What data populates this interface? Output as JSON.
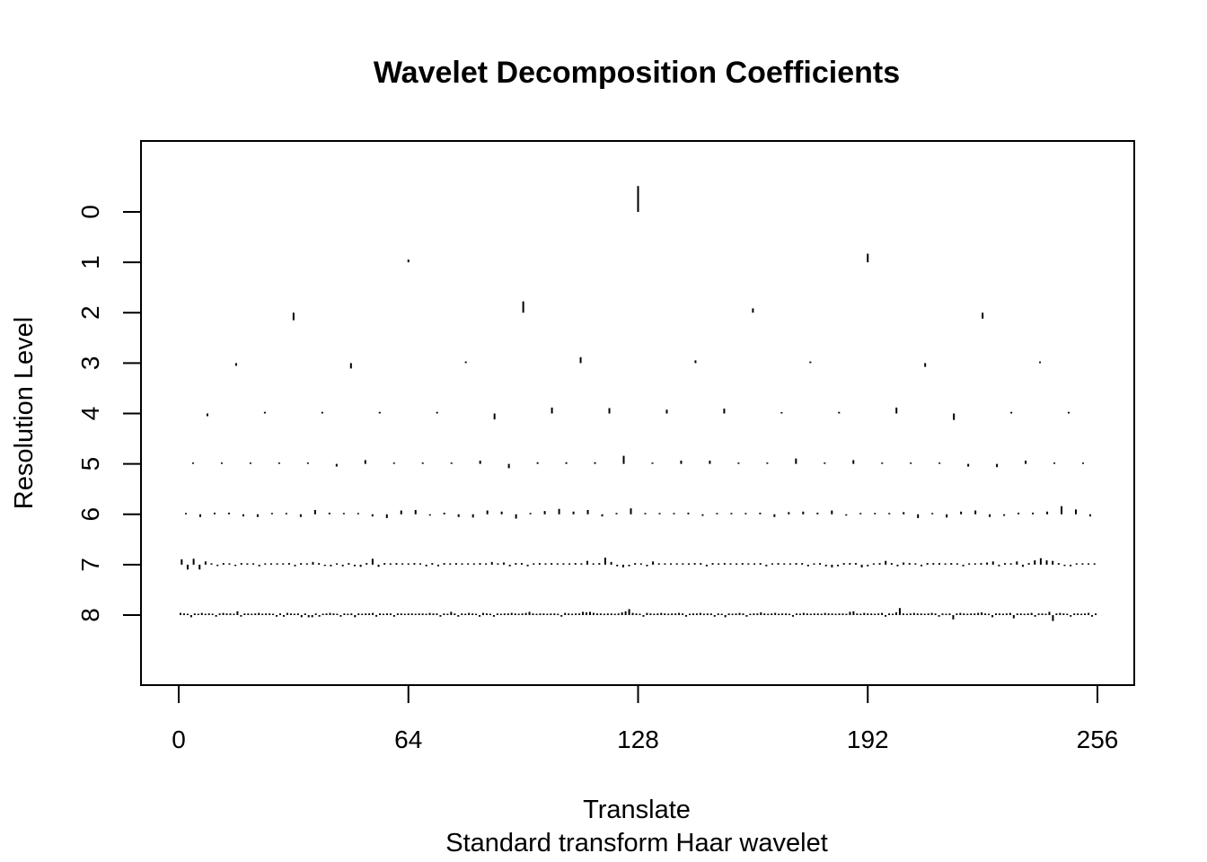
{
  "chart_data": {
    "type": "scatter",
    "title": "Wavelet Decomposition Coefficients",
    "xlabel": "Translate",
    "subtitle": "Standard transform Haar wavelet",
    "ylabel": "Resolution Level",
    "xlim": [
      0,
      256
    ],
    "x_ticks": [
      "0",
      "64",
      "128",
      "192",
      "256"
    ],
    "x_tick_values": [
      0,
      64,
      128,
      192,
      256
    ],
    "ylim": [
      -1.4,
      9.4
    ],
    "y_ticks": [
      "0",
      "1",
      "2",
      "3",
      "4",
      "5",
      "6",
      "7",
      "8"
    ],
    "y_tick_values": [
      0,
      1,
      2,
      3,
      4,
      5,
      6,
      7,
      8
    ],
    "grid": false,
    "legend": "none",
    "levels": [
      {
        "level": 0,
        "coefficients": [
          0.96
        ]
      },
      {
        "level": 1,
        "coefficients": [
          0.1,
          0.32
        ]
      },
      {
        "level": 2,
        "coefficients": [
          -0.28,
          0.42,
          0.16,
          -0.22
        ]
      },
      {
        "level": 3,
        "coefficients": [
          -0.1,
          -0.2,
          0.06,
          0.22,
          0.1,
          0.06,
          -0.14,
          0.06
        ]
      },
      {
        "level": 4,
        "coefficients": [
          -0.1,
          0.06,
          0.06,
          0.06,
          0.06,
          -0.22,
          0.22,
          0.2,
          0.14,
          0.18,
          0.04,
          0.06,
          0.22,
          -0.24,
          0.06,
          0.06
        ]
      },
      {
        "level": 5,
        "coefficients": [
          0.04,
          0.04,
          0.04,
          0.04,
          0.04,
          -0.1,
          0.14,
          0.04,
          0.04,
          0.04,
          0.12,
          -0.16,
          0.06,
          0.06,
          0.06,
          0.3,
          0.04,
          0.12,
          0.12,
          0.04,
          0.04,
          0.2,
          0.04,
          0.14,
          0.04,
          0.04,
          0.04,
          -0.1,
          -0.12,
          0.12,
          0.04,
          0.04
        ]
      },
      {
        "level": 6,
        "coefficients": [
          0.04,
          -0.1,
          0.06,
          0.06,
          -0.08,
          -0.1,
          0.04,
          0.04,
          -0.1,
          0.16,
          0.06,
          0.04,
          0.04,
          -0.08,
          -0.14,
          0.14,
          0.16,
          -0.04,
          0.06,
          -0.1,
          -0.12,
          0.14,
          0.1,
          -0.16,
          0.04,
          0.12,
          0.2,
          0.1,
          0.16,
          -0.08,
          0.04,
          0.22,
          0.04,
          0.04,
          0.04,
          0.06,
          -0.06,
          0.04,
          0.04,
          0.04,
          0.06,
          -0.1,
          0.08,
          0.1,
          0.06,
          0.14,
          -0.04,
          0.04,
          0.04,
          0.04,
          0.08,
          -0.14,
          0.04,
          -0.12,
          0.1,
          0.14,
          -0.1,
          -0.06,
          0.06,
          0.06,
          0.1,
          0.3,
          0.18,
          -0.08
        ]
      },
      {
        "level": 7,
        "coefficients": [
          0.2,
          -0.18,
          0.22,
          -0.18,
          0.12,
          0.04,
          -0.04,
          0.06,
          0.04,
          -0.04,
          0.06,
          0.04,
          0.04,
          -0.06,
          0.04,
          0.04,
          0.04,
          0.04,
          0.06,
          -0.06,
          0.06,
          0.04,
          0.1,
          0.06,
          -0.04,
          -0.06,
          0.04,
          -0.06,
          0.06,
          -0.06,
          -0.08,
          0.06,
          0.22,
          -0.08,
          0.06,
          0.04,
          0.06,
          0.04,
          0.04,
          0.06,
          0.04,
          -0.06,
          0.06,
          -0.06,
          0.06,
          0.04,
          0.06,
          0.04,
          0.04,
          0.04,
          0.06,
          0.04,
          0.1,
          0.04,
          0.08,
          -0.06,
          0.06,
          0.06,
          -0.06,
          0.04,
          0.06,
          0.04,
          0.06,
          0.04,
          0.04,
          0.04,
          0.06,
          0.04,
          0.14,
          0.04,
          0.06,
          0.26,
          0.1,
          -0.06,
          -0.1,
          -0.06,
          0.06,
          0.04,
          -0.06,
          0.12,
          0.04,
          0.04,
          0.04,
          0.04,
          0.04,
          0.04,
          0.06,
          0.06,
          -0.06,
          0.06,
          0.04,
          0.06,
          0.04,
          0.04,
          0.06,
          0.04,
          0.04,
          0.06,
          -0.06,
          0.04,
          0.06,
          0.04,
          0.04,
          0.06,
          0.06,
          -0.06,
          0.04,
          0.06,
          -0.06,
          -0.1,
          -0.06,
          0.06,
          0.06,
          0.06,
          -0.1,
          -0.06,
          0.04,
          0.06,
          0.14,
          0.06,
          -0.06,
          0.08,
          0.06,
          0.04,
          -0.06,
          0.06,
          0.06,
          0.06,
          0.04,
          0.06,
          0.04,
          -0.06,
          0.04,
          0.04,
          0.06,
          0.08,
          0.12,
          -0.06,
          0.06,
          0.04,
          0.12,
          -0.08,
          0.06,
          0.16,
          0.24,
          0.16,
          0.14,
          0.06,
          -0.04,
          -0.06,
          0.04,
          0.04,
          0.04,
          0.04
        ]
      },
      {
        "level": 8,
        "coefficients": [
          0.08,
          0.06,
          0.04,
          -0.08,
          0.06,
          0.04,
          0.08,
          0.04,
          0.06,
          0.04,
          -0.06,
          0.06,
          0.08,
          0.06,
          0.06,
          0.04,
          0.14,
          -0.06,
          0.06,
          0.06,
          0.04,
          0.06,
          0.08,
          0.04,
          0.06,
          0.06,
          0.04,
          -0.06,
          0.06,
          -0.06,
          0.08,
          0.06,
          0.04,
          0.06,
          -0.08,
          0.06,
          -0.08,
          -0.08,
          0.06,
          -0.06,
          0.04,
          0.06,
          0.08,
          0.06,
          0.04,
          -0.06,
          0.06,
          0.04,
          0.06,
          -0.08,
          0.06,
          0.04,
          0.06,
          0.06,
          0.08,
          -0.06,
          0.06,
          0.04,
          0.06,
          0.06,
          -0.06,
          0.06,
          0.06,
          0.04,
          0.06,
          0.06,
          0.04,
          0.06,
          0.06,
          0.04,
          0.08,
          0.06,
          0.06,
          -0.06,
          0.06,
          0.04,
          0.12,
          0.06,
          -0.06,
          0.06,
          0.04,
          0.08,
          0.06,
          0.04,
          -0.06,
          0.08,
          0.06,
          0.04,
          -0.06,
          0.06,
          0.04,
          0.06,
          0.06,
          0.08,
          0.06,
          0.04,
          0.06,
          0.08,
          0.12,
          0.06,
          0.04,
          0.06,
          0.06,
          0.04,
          0.06,
          0.06,
          0.04,
          -0.06,
          0.08,
          0.06,
          0.04,
          0.06,
          0.06,
          0.12,
          0.1,
          0.12,
          0.08,
          0.06,
          0.06,
          0.04,
          0.06,
          0.06,
          0.04,
          0.06,
          0.1,
          0.14,
          0.22,
          0.08,
          0.06,
          0.04,
          -0.06,
          0.08,
          0.06,
          0.04,
          0.06,
          0.08,
          0.06,
          0.04,
          0.06,
          0.06,
          0.08,
          0.06,
          -0.06,
          0.04,
          0.06,
          0.06,
          0.08,
          0.04,
          0.06,
          0.06,
          -0.06,
          0.06,
          0.04,
          -0.08,
          0.06,
          0.04,
          0.06,
          0.08,
          0.06,
          -0.06,
          0.04,
          0.06,
          0.06,
          0.1,
          0.06,
          0.04,
          0.06,
          0.08,
          0.04,
          0.06,
          0.06,
          0.04,
          -0.06,
          0.06,
          0.04,
          0.08,
          0.06,
          0.04,
          0.06,
          0.06,
          0.04,
          0.08,
          0.06,
          0.06,
          0.04,
          0.06,
          0.06,
          0.04,
          0.12,
          0.14,
          0.06,
          0.04,
          0.08,
          0.06,
          0.06,
          0.04,
          0.06,
          0.08,
          -0.06,
          0.06,
          0.04,
          0.1,
          0.26,
          0.06,
          0.04,
          0.06,
          0.08,
          0.06,
          0.06,
          0.04,
          0.06,
          0.08,
          0.06,
          -0.06,
          0.06,
          0.04,
          0.06,
          -0.16,
          0.06,
          0.08,
          0.06,
          0.04,
          0.06,
          0.06,
          0.08,
          0.1,
          0.06,
          0.04,
          -0.08,
          0.06,
          0.06,
          0.04,
          0.06,
          0.08,
          -0.12,
          0.06,
          0.06,
          0.04,
          0.06,
          0.08,
          -0.06,
          0.06,
          0.06,
          0.04,
          0.12,
          -0.22,
          0.06,
          0.08,
          0.06,
          0.04,
          -0.06,
          0.06,
          0.06,
          0.04,
          0.06,
          0.08,
          -0.06,
          0.06
        ]
      }
    ]
  }
}
